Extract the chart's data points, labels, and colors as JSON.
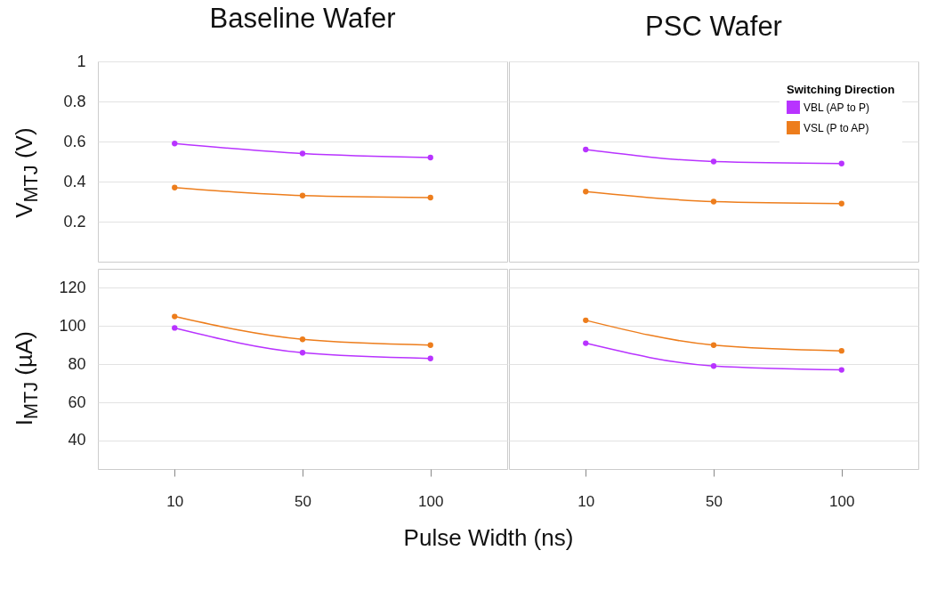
{
  "chart_data": [
    {
      "type": "line",
      "title": "Baseline Wafer",
      "ylabel": "V$_{MTJ}$ (V)",
      "categories": [
        "10",
        "50",
        "100"
      ],
      "ylim": [
        0,
        1
      ],
      "yticks": [
        0.2,
        0.4,
        0.6,
        0.8,
        1
      ],
      "tick_labels": "y",
      "grid": "y",
      "marker": "circle",
      "legend": false,
      "series": [
        {
          "color": "#b833ff",
          "values": [
            0.59,
            0.54,
            0.52
          ]
        },
        {
          "color": "#ed7d1c",
          "values": [
            0.37,
            0.33,
            0.32
          ]
        }
      ]
    },
    {
      "type": "line",
      "title": "PSC Wafer",
      "categories": [
        "10",
        "50",
        "100"
      ],
      "ylim": [
        0,
        1
      ],
      "yticks": [
        0.2,
        0.4,
        0.6,
        0.8,
        1
      ],
      "tick_labels": false,
      "grid": "y",
      "marker": "circle",
      "legend": "top right",
      "legend_title": "Switching Direction",
      "series": [
        {
          "name": "VBL (AP to P)",
          "color": "#b833ff",
          "values": [
            0.56,
            0.5,
            0.49
          ]
        },
        {
          "name": "VSL (P to AP)",
          "color": "#ed7d1c",
          "values": [
            0.35,
            0.3,
            0.29
          ]
        }
      ]
    },
    {
      "type": "line",
      "ylabel": "I$_{MTJ}$ (µA)",
      "xlabel": "Pulse Width (ns)",
      "categories": [
        "10",
        "50",
        "100"
      ],
      "ylim": [
        25,
        130
      ],
      "yticks": [
        40,
        60,
        80,
        100,
        120
      ],
      "grid": "y",
      "marker": "circle",
      "legend": false,
      "series": [
        {
          "color": "#b833ff",
          "values": [
            99,
            86,
            83
          ]
        },
        {
          "color": "#ed7d1c",
          "values": [
            105,
            93,
            90
          ]
        }
      ]
    },
    {
      "type": "line",
      "categories": [
        "10",
        "50",
        "100"
      ],
      "ylim": [
        25,
        130
      ],
      "yticks": [
        40,
        60,
        80,
        100,
        120
      ],
      "tick_labels": "x",
      "grid": "y",
      "marker": "circle",
      "legend": false,
      "series": [
        {
          "color": "#b833ff",
          "values": [
            91,
            79,
            77
          ]
        },
        {
          "color": "#ed7d1c",
          "values": [
            103,
            90,
            87
          ]
        }
      ]
    }
  ]
}
